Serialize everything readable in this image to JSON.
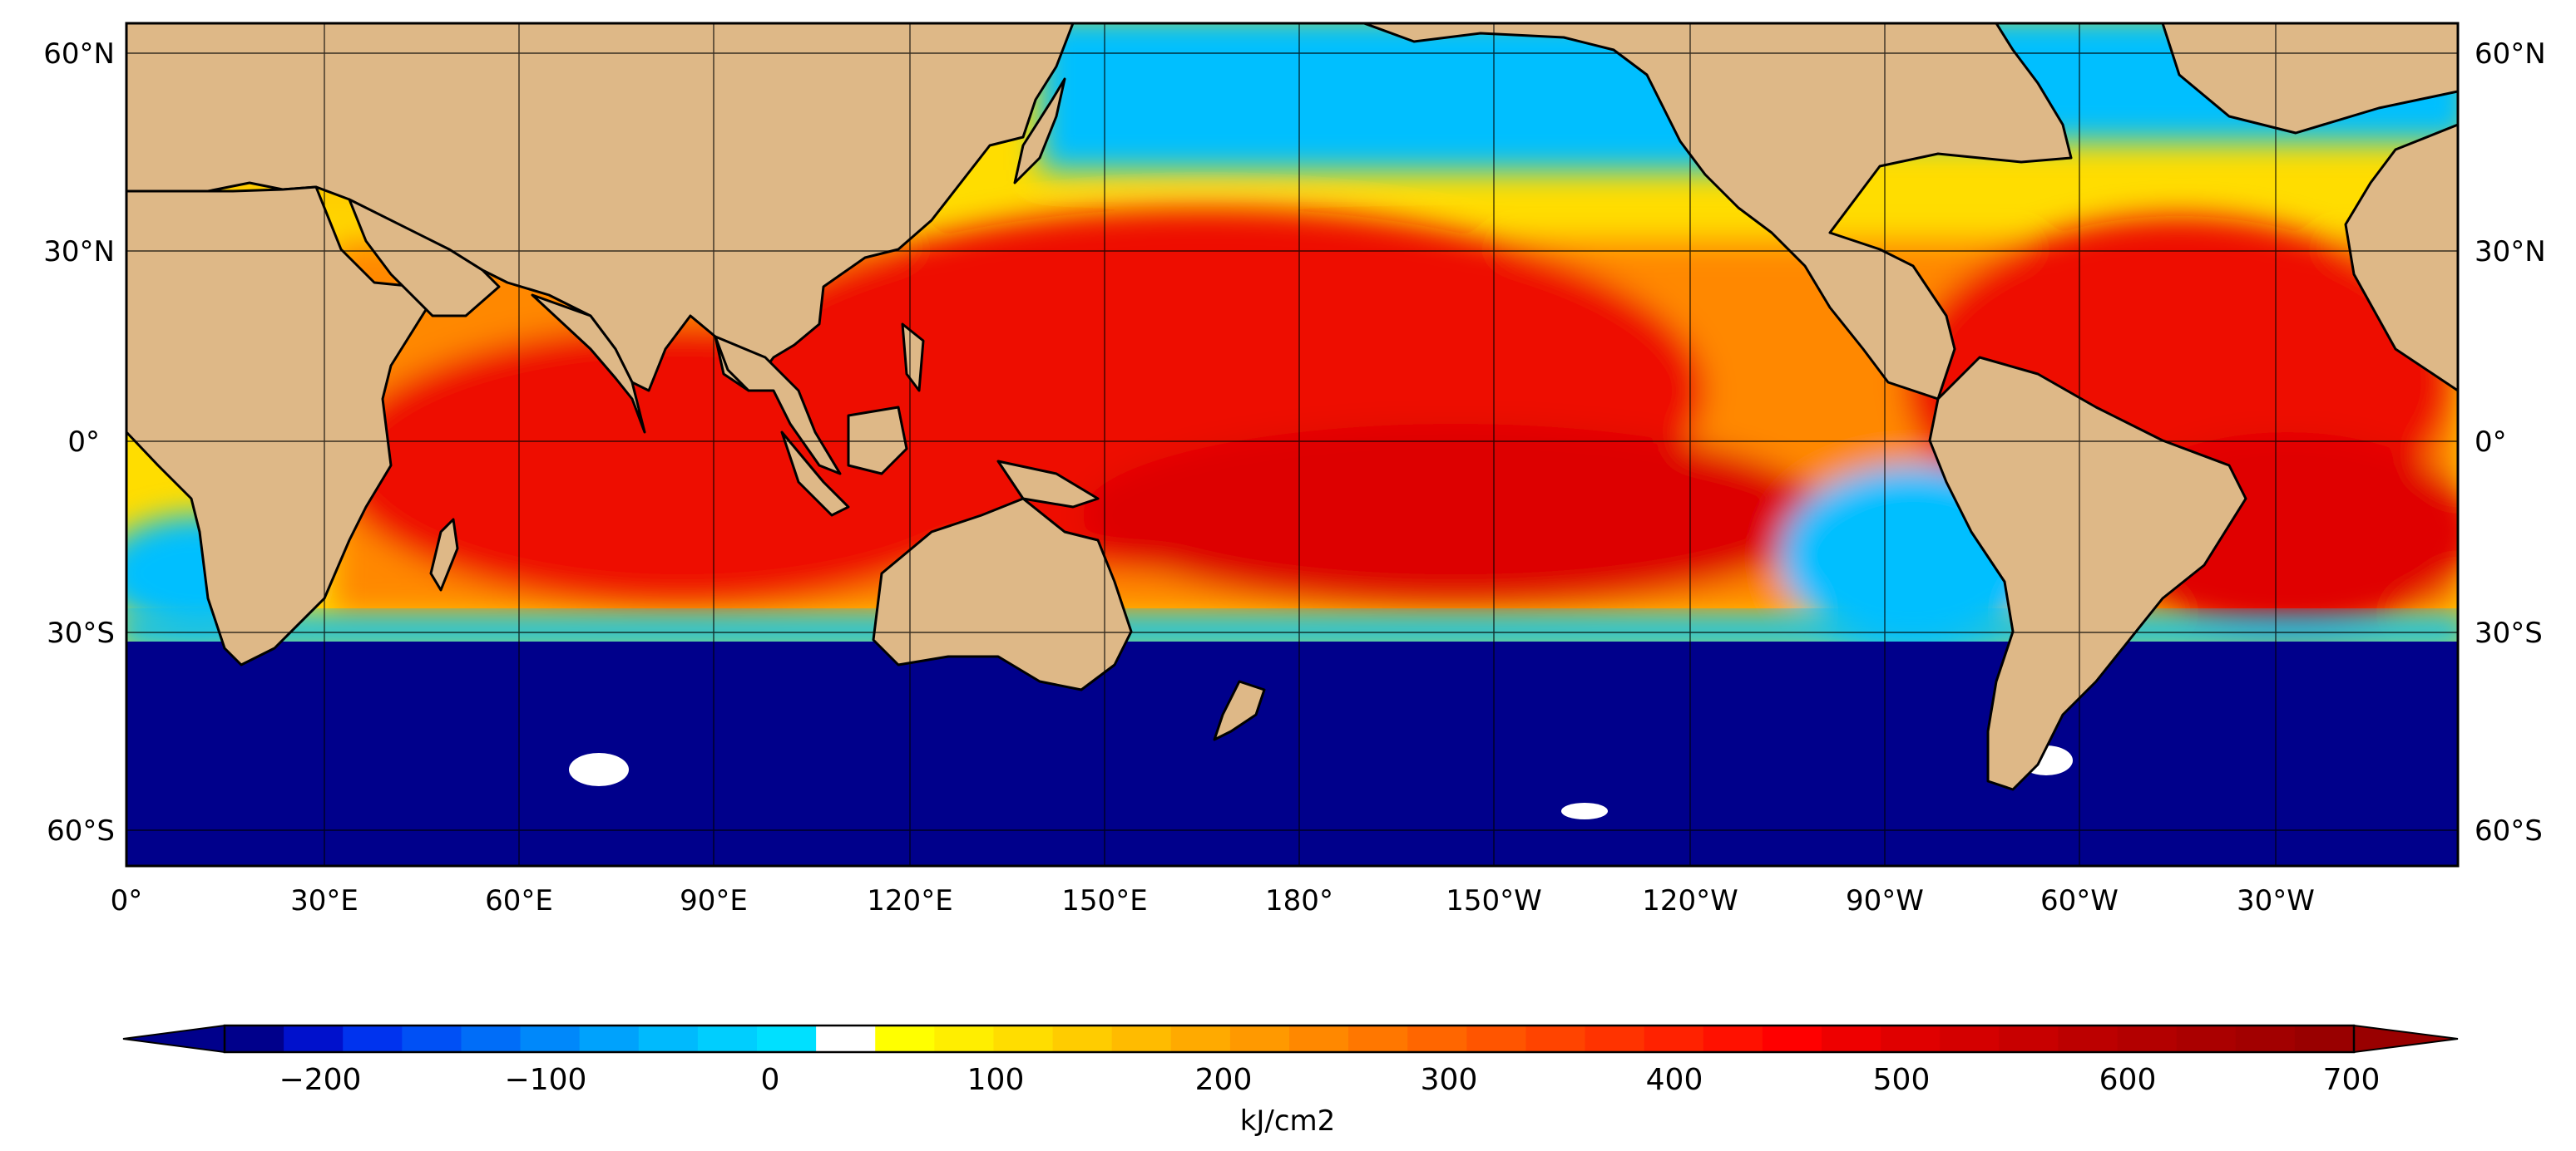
{
  "map": {
    "lat_labels_left": [
      "60°N",
      "30°N",
      "0°",
      "30°S",
      "60°S"
    ],
    "lat_labels_right": [
      "60°N",
      "30°N",
      "0°",
      "30°S",
      "60°S"
    ],
    "lon_labels": [
      "0°",
      "30°E",
      "60°E",
      "90°E",
      "120°E",
      "150°E",
      "180°",
      "150°W",
      "120°W",
      "90°W",
      "60°W",
      "30°W"
    ]
  },
  "colorbar": {
    "tick_labels": [
      "−200",
      "−100",
      "0",
      "100",
      "200",
      "300",
      "400",
      "500",
      "600",
      "700"
    ],
    "unit_label": "kJ/cm2",
    "colors": [
      "#00008b",
      "#0011cc",
      "#0033ee",
      "#0050f5",
      "#006df8",
      "#0088fa",
      "#00a2fc",
      "#00bafd",
      "#00cefe",
      "#00e0ff",
      "#ffffff",
      "#ffff00",
      "#ffee00",
      "#ffdd00",
      "#ffcc00",
      "#ffbb00",
      "#ffaa00",
      "#ff9900",
      "#ff8800",
      "#ff7700",
      "#ff6600",
      "#ff5500",
      "#ff4400",
      "#ff3300",
      "#ff2200",
      "#ff1100",
      "#ff0000",
      "#ee0000",
      "#e00000",
      "#d40000",
      "#c80000",
      "#bc0000",
      "#b30000",
      "#aa0000",
      "#a20000",
      "#990000"
    ]
  },
  "colors": {
    "land": "#deb887",
    "ocean_south": "#00008b",
    "cold_band": "#00bfff",
    "warm_yellow": "#ffdd00",
    "warm_orange": "#ff9900",
    "hot_red": "#ee1100",
    "very_hot": "#cc0000"
  }
}
